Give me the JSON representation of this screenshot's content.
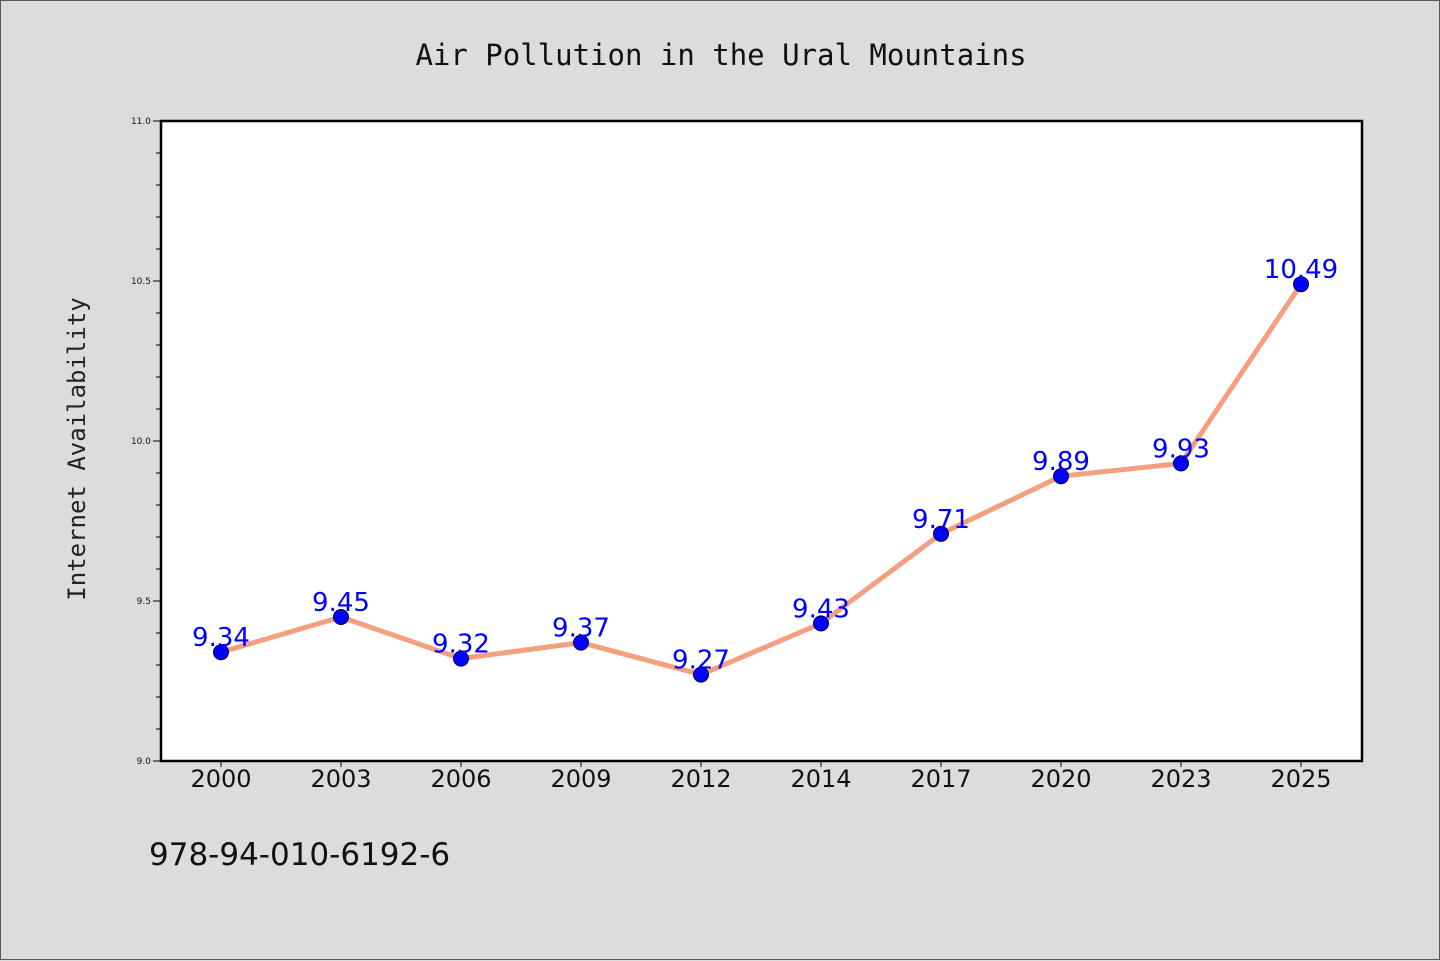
{
  "chart_data": {
    "type": "line",
    "title": "Air Pollution in the Ural Mountains",
    "xlabel": "",
    "ylabel": "Internet Availability",
    "categories": [
      "2000",
      "2003",
      "2006",
      "2009",
      "2012",
      "2014",
      "2017",
      "2020",
      "2023",
      "2025"
    ],
    "series": [
      {
        "values": [
          9.34,
          9.45,
          9.32,
          9.37,
          9.27,
          9.43,
          9.71,
          9.89,
          9.93,
          10.49
        ],
        "value_labels": [
          "9.34",
          "9.45",
          "9.32",
          "9.37",
          "9.27",
          "9.43",
          "9.71",
          "9.89",
          "9.93",
          "10.49"
        ],
        "line_color": "#f4a07e",
        "marker_color": "#0000ff"
      }
    ],
    "ylim": [
      9.0,
      11.0
    ],
    "y_ticks": [
      9.0,
      9.5,
      10.0,
      10.5,
      11.0
    ],
    "y_tick_labels": [
      "9.0",
      "9.5",
      "10.0",
      "10.5",
      "11.0"
    ],
    "grid": false,
    "legend": "none"
  },
  "footnote": "978-94-010-6192-6",
  "colors": {
    "background": "#dcdcdc",
    "plot_background": "#ffffff",
    "data_label": "#0000ff"
  }
}
